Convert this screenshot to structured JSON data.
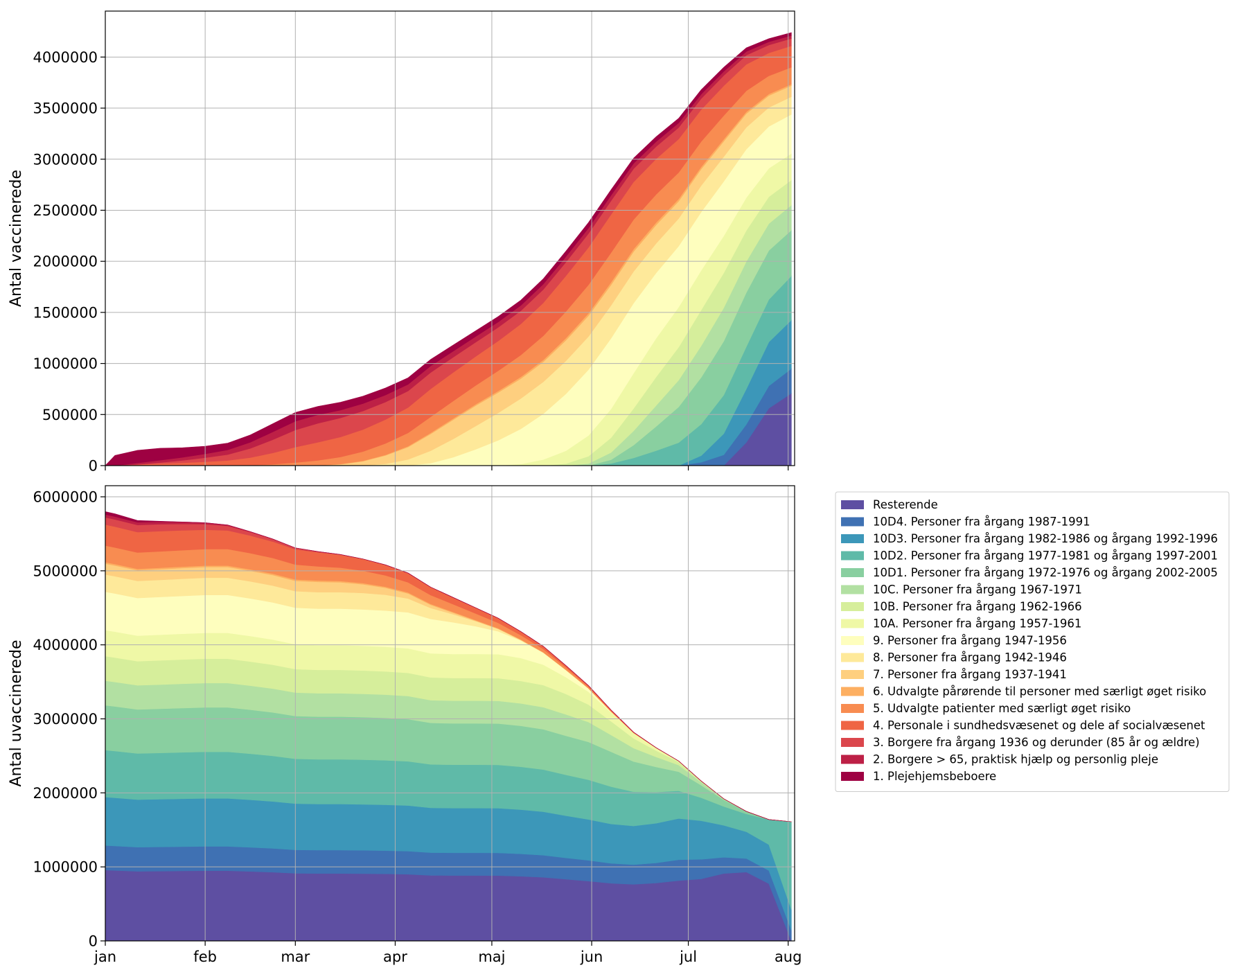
{
  "chart_data": [
    {
      "type": "area",
      "stacked": true,
      "ylabel": "Antal vaccinerede",
      "xlabel": "",
      "x": [
        "2021-01-01",
        "2021-01-04",
        "2021-01-11",
        "2021-01-18",
        "2021-01-25",
        "2021-02-01",
        "2021-02-08",
        "2021-02-15",
        "2021-02-22",
        "2021-03-01",
        "2021-03-08",
        "2021-03-15",
        "2021-03-22",
        "2021-03-29",
        "2021-04-05",
        "2021-04-12",
        "2021-04-19",
        "2021-04-26",
        "2021-05-03",
        "2021-05-10",
        "2021-05-17",
        "2021-05-24",
        "2021-05-31",
        "2021-06-07",
        "2021-06-14",
        "2021-06-21",
        "2021-06-28",
        "2021-07-05",
        "2021-07-12",
        "2021-07-19",
        "2021-07-26",
        "2021-08-02"
      ],
      "xticks": [
        {
          "label": "jan",
          "x": "2021-01-01"
        },
        {
          "label": "feb",
          "x": "2021-02-01"
        },
        {
          "label": "mar",
          "x": "2021-03-01"
        },
        {
          "label": "apr",
          "x": "2021-04-01"
        },
        {
          "label": "maj",
          "x": "2021-05-01"
        },
        {
          "label": "jun",
          "x": "2021-06-01"
        },
        {
          "label": "jul",
          "x": "2021-07-01"
        },
        {
          "label": "aug",
          "x": "2021-08-01"
        }
      ],
      "xlim": [
        "2021-01-01",
        "2021-08-03"
      ],
      "ylim": [
        0,
        4450000
      ],
      "yticks": [
        0,
        500000,
        1000000,
        1500000,
        2000000,
        2500000,
        3000000,
        3500000,
        4000000
      ],
      "grid": true,
      "total": [
        40000,
        100000,
        150000,
        170000,
        175000,
        190000,
        220000,
        300000,
        410000,
        520000,
        580000,
        620000,
        680000,
        760000,
        860000,
        1040000,
        1180000,
        1320000,
        1460000,
        1620000,
        1830000,
        2100000,
        2380000,
        2700000,
        3010000,
        3220000,
        3400000,
        3680000,
        3900000,
        4090000,
        4180000,
        4240000
      ]
    },
    {
      "type": "area",
      "stacked": true,
      "ylabel": "Antal uvaccinerede",
      "xlabel": "",
      "x_same_as_first": true,
      "xticks": [
        {
          "label": "jan",
          "x": "2021-01-01"
        },
        {
          "label": "feb",
          "x": "2021-02-01"
        },
        {
          "label": "mar",
          "x": "2021-03-01"
        },
        {
          "label": "apr",
          "x": "2021-04-01"
        },
        {
          "label": "maj",
          "x": "2021-05-01"
        },
        {
          "label": "jun",
          "x": "2021-06-01"
        },
        {
          "label": "jul",
          "x": "2021-07-01"
        },
        {
          "label": "aug",
          "x": "2021-08-01"
        }
      ],
      "xlim": [
        "2021-01-01",
        "2021-08-03"
      ],
      "ylim": [
        0,
        6150000
      ],
      "yticks": [
        0,
        1000000,
        2000000,
        3000000,
        4000000,
        5000000,
        6000000
      ],
      "grid": true,
      "total": [
        5800000,
        5770000,
        5680000,
        5670000,
        5660000,
        5650000,
        5620000,
        5530000,
        5430000,
        5310000,
        5260000,
        5220000,
        5160000,
        5080000,
        4970000,
        4780000,
        4640000,
        4500000,
        4360000,
        4180000,
        3980000,
        3720000,
        3450000,
        3120000,
        2820000,
        2610000,
        2430000,
        2160000,
        1920000,
        1750000,
        1640000,
        1610000
      ],
      "legend": {
        "placement": "right",
        "entries": [
          "Resterende",
          "10D4. Personer fra årgang 1987-1991",
          "10D3. Personer fra årgang 1982-1986 og årgang 1992-1996",
          "10D2. Personer fra årgang 1977-1981 og årgang 1997-2001",
          "10D1. Personer fra årgang 1972-1976 og årgang 2002-2005",
          "10C. Personer fra årgang 1967-1971",
          "10B. Personer fra årgang 1962-1966",
          "10A. Personer fra årgang 1957-1961",
          "9. Personer fra årgang 1947-1956",
          "8. Personer fra årgang 1942-1946",
          "7. Personer fra årgang 1937-1941",
          "6. Udvalgte pårørende til personer med særligt øget risiko",
          "5. Udvalgte patienter med særligt øget risiko",
          "4. Personale i sundhedsvæsenet og dele af socialvæsenet",
          "3. Borgere fra årgang 1936 og derunder (85 år og ældre)",
          "2. Borgere > 65, praktisk hjælp og personlig pleje",
          "1. Plejehjemsbeboere"
        ]
      }
    }
  ],
  "groups": [
    {
      "name": "Resterende",
      "color": "#5e4fa2",
      "size": 980000,
      "start": "2021-07-12",
      "end": "2021-08-02"
    },
    {
      "name": "10D4. Personer fra årgang 1987-1991",
      "color": "#3f71b3",
      "size": 340000,
      "start": "2021-06-28",
      "end": "2021-08-05"
    },
    {
      "name": "10D3. Personer fra årgang 1982-1986 og årgang 1992-1996",
      "color": "#3c97b9",
      "size": 670000,
      "start": "2021-06-28",
      "end": "2021-08-05"
    },
    {
      "name": "10D2. Personer fra årgang 1977-1981 og årgang 1997-2001",
      "color": "#5fbaa8",
      "size": 650000,
      "start": "2021-05-31",
      "end": "2021-08-15"
    },
    {
      "name": "10D1. Personer fra årgang 1972-1976 og årgang 2002-2005",
      "color": "#89cfa0",
      "size": 620000,
      "start": "2021-05-31",
      "end": "2021-07-26"
    },
    {
      "name": "10C. Personer fra årgang 1967-1971",
      "color": "#b2e0a2",
      "size": 340000,
      "start": "2021-05-24",
      "end": "2021-07-19"
    },
    {
      "name": "10B. Personer fra årgang 1962-1966",
      "color": "#d6ee9b",
      "size": 340000,
      "start": "2021-05-17",
      "end": "2021-07-12"
    },
    {
      "name": "10A. Personer fra årgang 1957-1961",
      "color": "#eff8a6",
      "size": 360000,
      "start": "2021-05-03",
      "end": "2021-07-05"
    },
    {
      "name": "9. Personer fra årgang 1947-1956",
      "color": "#fefebe",
      "size": 530000,
      "start": "2021-04-05",
      "end": "2021-06-14"
    },
    {
      "name": "8. Personer fra årgang 1942-1946",
      "color": "#fee99a",
      "size": 240000,
      "start": "2021-03-22",
      "end": "2021-05-17"
    },
    {
      "name": "7. Personer fra årgang 1937-1941",
      "color": "#fecf7f",
      "size": 150000,
      "start": "2021-03-08",
      "end": "2021-05-03"
    },
    {
      "name": "6. Udvalgte pårørende til personer med særligt øget risiko",
      "color": "#fdaf61",
      "size": 20000,
      "start": "2021-02-22",
      "end": "2021-06-28"
    },
    {
      "name": "5. Udvalgte patienter med særligt øget risiko",
      "color": "#f88c51",
      "size": 230000,
      "start": "2021-02-08",
      "end": "2021-06-28"
    },
    {
      "name": "4. Personale i sundhedsvæsenet og dele af socialvæsenet",
      "color": "#ef6544",
      "size": 290000,
      "start": "2021-01-04",
      "end": "2021-06-28"
    },
    {
      "name": "3. Borgere fra årgang 1936 og derunder (85 år og ældre)",
      "color": "#db464c",
      "size": 100000,
      "start": "2021-01-11",
      "end": "2021-03-22"
    },
    {
      "name": "2. Borgere > 65, praktisk hjælp og personlig pleje",
      "color": "#bd2046",
      "size": 40000,
      "start": "2021-01-04",
      "end": "2021-03-01"
    },
    {
      "name": "1. Plejehjemsbeboere",
      "color": "#9e0142",
      "size": 40000,
      "start": "2021-01-01",
      "end": "2021-01-25"
    }
  ]
}
